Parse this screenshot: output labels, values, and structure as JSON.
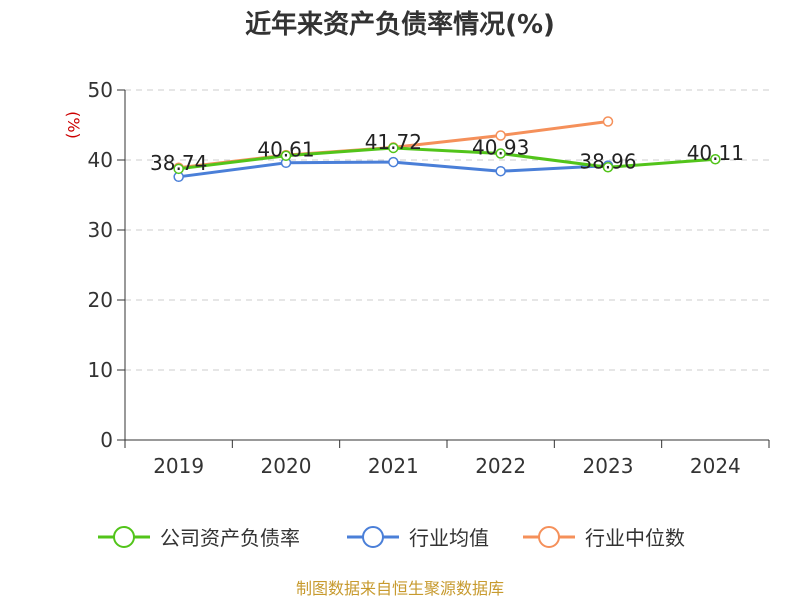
{
  "chart_data": {
    "type": "line",
    "title": "近年来资产负债率情况(%)",
    "ylabel": "(%)",
    "xlabel": "",
    "categories": [
      "2019",
      "2020",
      "2021",
      "2022",
      "2023",
      "2024"
    ],
    "ylim": [
      0,
      50
    ],
    "yticks": [
      "0",
      "10",
      "20",
      "30",
      "40",
      "50"
    ],
    "grid": true,
    "legend_position": "bottom",
    "series": [
      {
        "name": "公司资产负债率",
        "color": "#52c41a",
        "values": [
          38.74,
          40.61,
          41.72,
          40.93,
          38.96,
          40.11
        ],
        "labels": [
          "38.74",
          "40.61",
          "41.72",
          "40.93",
          "38.96",
          "40.11"
        ]
      },
      {
        "name": "行业均值",
        "color": "#4a7fd8",
        "values": [
          37.6,
          39.6,
          39.7,
          38.4,
          39.2,
          null
        ]
      },
      {
        "name": "行业中位数",
        "color": "#f5905a",
        "values": [
          38.9,
          40.7,
          41.8,
          43.5,
          45.5,
          null
        ]
      }
    ]
  },
  "source_text": "制图数据来自恒生聚源数据库"
}
